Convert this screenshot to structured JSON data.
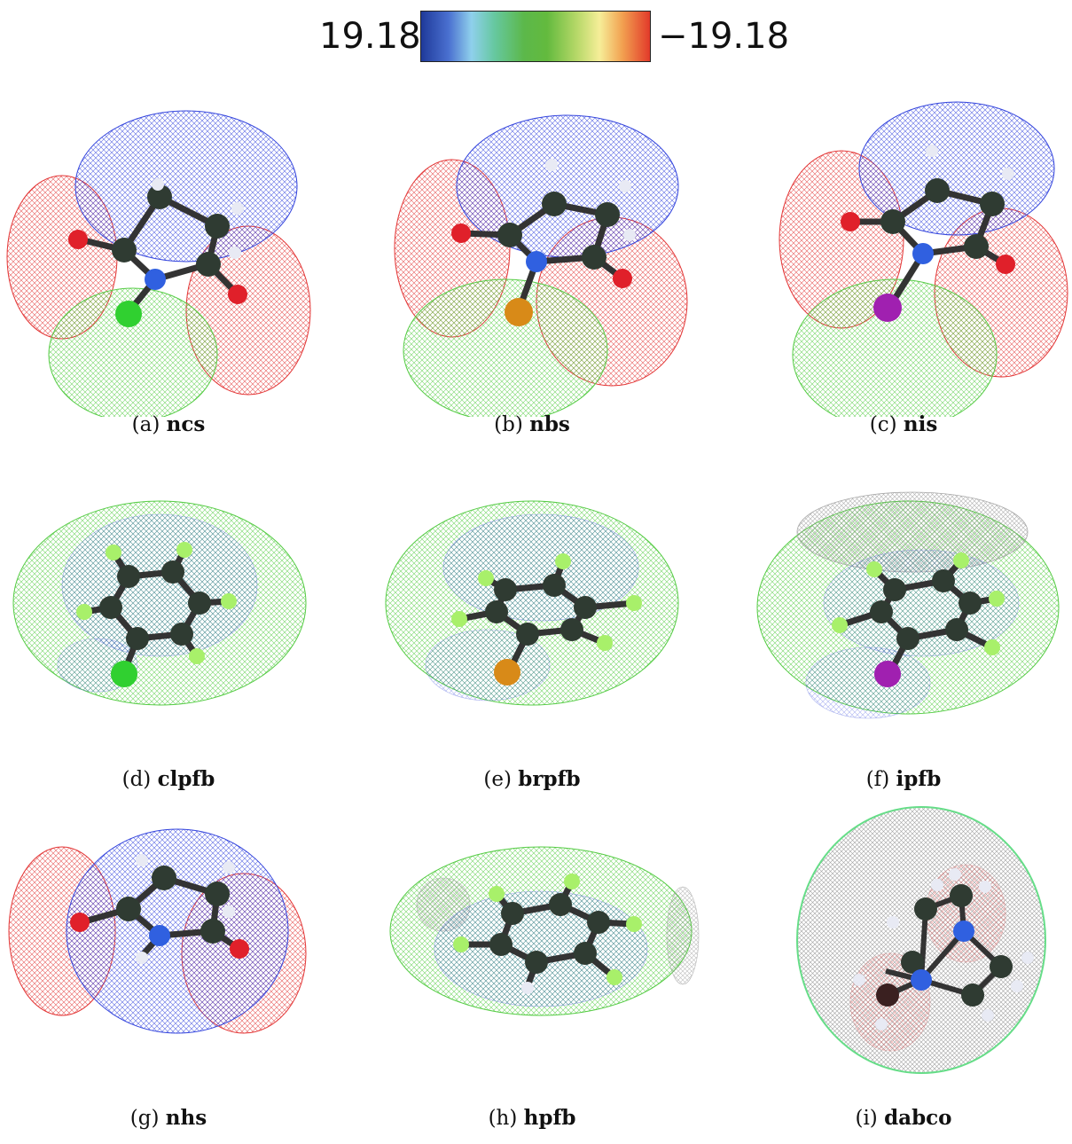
{
  "colorbar": {
    "min_label": "19.18",
    "max_label": "−19.18",
    "colors": [
      "#1f3a9a",
      "#8fd0ec",
      "#5cb84a",
      "#f6ee98",
      "#e23a2a"
    ]
  },
  "panels": [
    {
      "id": "a",
      "letter": "(a)",
      "name": "ncs"
    },
    {
      "id": "b",
      "letter": "(b)",
      "name": "nbs"
    },
    {
      "id": "c",
      "letter": "(c)",
      "name": "nis"
    },
    {
      "id": "d",
      "letter": "(d)",
      "name": "clpfb"
    },
    {
      "id": "e",
      "letter": "(e)",
      "name": "brpfb"
    },
    {
      "id": "f",
      "letter": "(f)",
      "name": "ipfb"
    },
    {
      "id": "g",
      "letter": "(g)",
      "name": "nhs"
    },
    {
      "id": "h",
      "letter": "(h)",
      "name": "hpfb"
    },
    {
      "id": "i",
      "letter": "(i)",
      "name": "dabco"
    }
  ],
  "atom_colors": {
    "carbon": "#2f3b32",
    "nitrogen": "#3060e0",
    "oxygen": "#e0202a",
    "hydrogen": "#e8eaf4",
    "fluorine": "#a8f06a",
    "chlorine": "#30d030",
    "bromine": "#d88a18",
    "iodine": "#a020b0"
  }
}
